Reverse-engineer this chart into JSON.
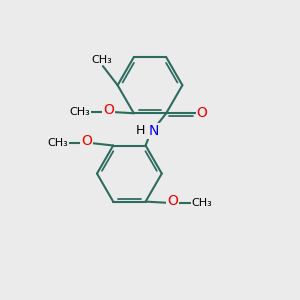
{
  "bg_color": "#ebebeb",
  "bond_color": "#2d6b5e",
  "bond_width": 1.5,
  "N_color": "#0000ee",
  "O_color": "#ee0000",
  "C_color": "#000000",
  "font_size": 9,
  "fig_size": [
    3.0,
    3.0
  ],
  "dpi": 100,
  "xlim": [
    0,
    10
  ],
  "ylim": [
    0,
    10
  ]
}
